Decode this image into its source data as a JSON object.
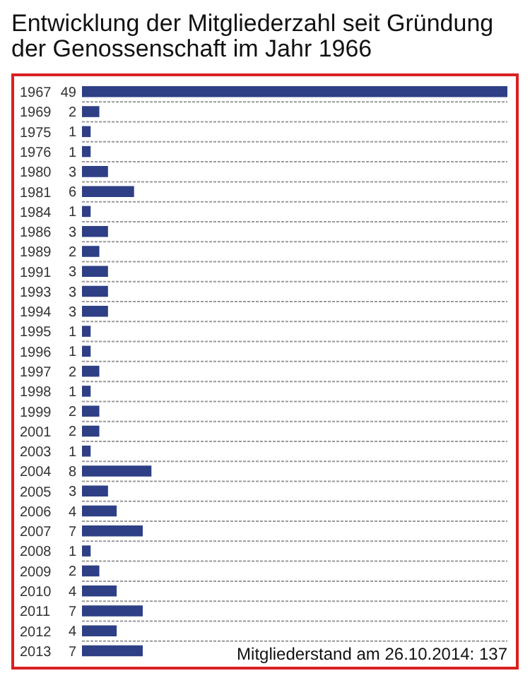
{
  "chart_data": {
    "type": "bar",
    "orientation": "horizontal",
    "title": "Entwicklung der Mitgliederzahl seit Gründung der Genossenschaft im Jahr 1966",
    "categories": [
      "1967",
      "1969",
      "1975",
      "1976",
      "1980",
      "1981",
      "1984",
      "1986",
      "1989",
      "1991",
      "1993",
      "1994",
      "1995",
      "1996",
      "1997",
      "1998",
      "1999",
      "2001",
      "2003",
      "2004",
      "2005",
      "2006",
      "2007",
      "2008",
      "2009",
      "2010",
      "2011",
      "2012",
      "2013"
    ],
    "values": [
      49,
      2,
      1,
      1,
      3,
      6,
      1,
      3,
      2,
      3,
      3,
      3,
      1,
      1,
      2,
      1,
      2,
      2,
      1,
      8,
      3,
      4,
      7,
      1,
      2,
      4,
      7,
      4,
      7
    ],
    "color": "#2e3f86",
    "data_labels": true,
    "grid": "y",
    "annotations": [
      "Mitgliederstand am 26.10.2014: 137"
    ]
  }
}
